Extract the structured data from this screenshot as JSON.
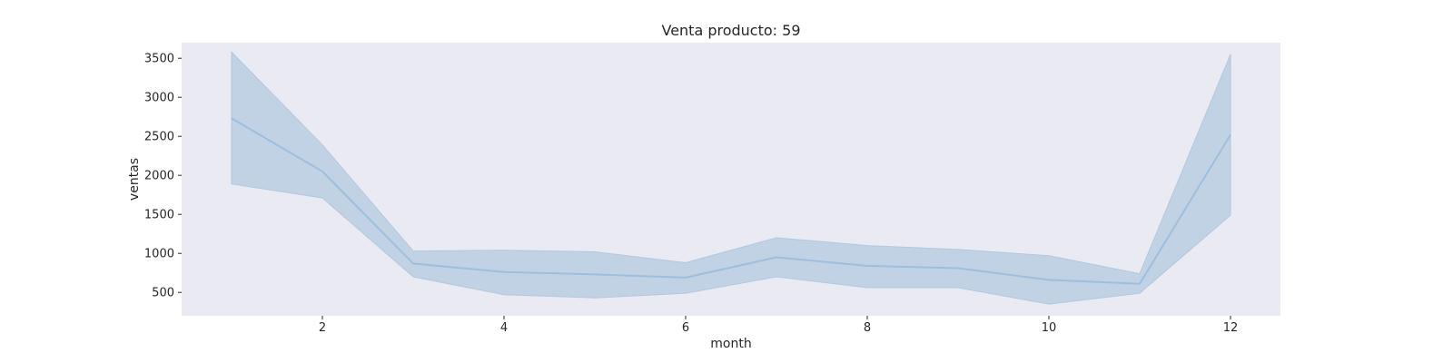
{
  "chart_data": {
    "type": "line",
    "title": "Venta producto: 59",
    "xlabel": "month",
    "ylabel": "ventas",
    "xlim": [
      0.45,
      12.55
    ],
    "ylim": [
      200,
      3700
    ],
    "xticks": [
      2,
      4,
      6,
      8,
      10,
      12
    ],
    "yticks": [
      500,
      1000,
      1500,
      2000,
      2500,
      3000,
      3500
    ],
    "grid": false,
    "legend": "none",
    "x": [
      1,
      2,
      3,
      4,
      5,
      6,
      7,
      8,
      9,
      10,
      11,
      12
    ],
    "series": [
      {
        "values": [
          2730,
          2050,
          870,
          760,
          730,
          690,
          950,
          840,
          810,
          660,
          610,
          2520
        ],
        "ci_upper": [
          3580,
          2390,
          1030,
          1040,
          1020,
          880,
          1200,
          1100,
          1050,
          970,
          740,
          3550
        ],
        "ci_lower": [
          1890,
          1710,
          700,
          470,
          430,
          490,
          700,
          560,
          560,
          350,
          490,
          1490
        ]
      }
    ],
    "colors": {
      "background": "#eaeaf2",
      "line": "#9ebfdc",
      "band": "#b0c8e0"
    }
  }
}
